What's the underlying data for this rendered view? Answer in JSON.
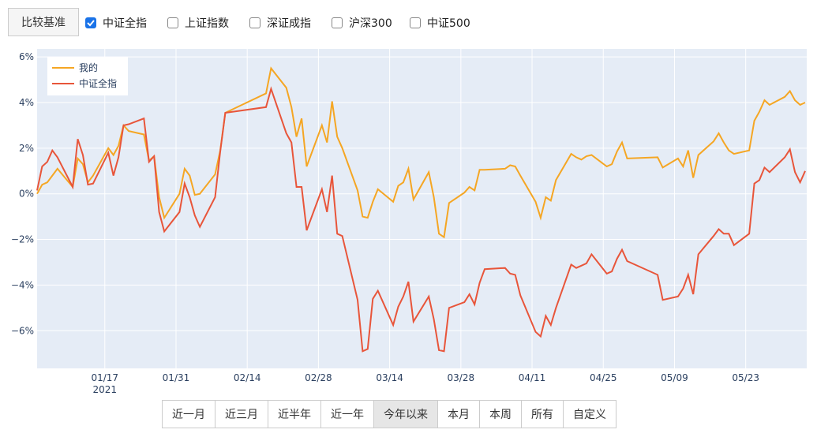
{
  "compare_button": "比较基准",
  "benchmarks": [
    {
      "label": "中证全指",
      "checked": true
    },
    {
      "label": "上证指数",
      "checked": false
    },
    {
      "label": "深证成指",
      "checked": false
    },
    {
      "label": "沪深300",
      "checked": false
    },
    {
      "label": "中证500",
      "checked": false
    }
  ],
  "chart_data": {
    "type": "line",
    "x": [
      "2021-01-04",
      "2021-01-05",
      "2021-01-06",
      "2021-01-07",
      "2021-01-08",
      "2021-01-11",
      "2021-01-12",
      "2021-01-13",
      "2021-01-14",
      "2021-01-15",
      "2021-01-18",
      "2021-01-19",
      "2021-01-20",
      "2021-01-21",
      "2021-01-22",
      "2021-01-25",
      "2021-01-26",
      "2021-01-27",
      "2021-01-28",
      "2021-01-29",
      "2021-02-01",
      "2021-02-02",
      "2021-02-03",
      "2021-02-04",
      "2021-02-05",
      "2021-02-08",
      "2021-02-09",
      "2021-02-10",
      "2021-02-18",
      "2021-02-19",
      "2021-02-22",
      "2021-02-23",
      "2021-02-24",
      "2021-02-25",
      "2021-02-26",
      "2021-03-01",
      "2021-03-02",
      "2021-03-03",
      "2021-03-04",
      "2021-03-05",
      "2021-03-08",
      "2021-03-09",
      "2021-03-10",
      "2021-03-11",
      "2021-03-12",
      "2021-03-15",
      "2021-03-16",
      "2021-03-17",
      "2021-03-18",
      "2021-03-19",
      "2021-03-22",
      "2021-03-23",
      "2021-03-24",
      "2021-03-25",
      "2021-03-26",
      "2021-03-29",
      "2021-03-30",
      "2021-03-31",
      "2021-04-01",
      "2021-04-02",
      "2021-04-06",
      "2021-04-07",
      "2021-04-08",
      "2021-04-09",
      "2021-04-12",
      "2021-04-13",
      "2021-04-14",
      "2021-04-15",
      "2021-04-16",
      "2021-04-19",
      "2021-04-20",
      "2021-04-21",
      "2021-04-22",
      "2021-04-23",
      "2021-04-26",
      "2021-04-27",
      "2021-04-28",
      "2021-04-29",
      "2021-04-30",
      "2021-05-06",
      "2021-05-07",
      "2021-05-10",
      "2021-05-11",
      "2021-05-12",
      "2021-05-13",
      "2021-05-14",
      "2021-05-17",
      "2021-05-18",
      "2021-05-19",
      "2021-05-20",
      "2021-05-21",
      "2021-05-24",
      "2021-05-25",
      "2021-05-26",
      "2021-05-27",
      "2021-05-28",
      "2021-05-31",
      "2021-06-01",
      "2021-06-02",
      "2021-06-03",
      "2021-06-04"
    ],
    "series": [
      {
        "name": "我的",
        "color": "#f5a623",
        "values": [
          0,
          0.4,
          0.5,
          0.8,
          1.1,
          0.3,
          1.55,
          1.3,
          0.5,
          0.8,
          2.0,
          1.7,
          2.1,
          3.0,
          2.75,
          2.6,
          1.45,
          1.65,
          -0.15,
          -1.05,
          0,
          1.1,
          0.8,
          -0.05,
          0,
          0.85,
          1.9,
          3.55,
          4.4,
          5.5,
          4.65,
          3.8,
          2.5,
          3.3,
          1.2,
          3.0,
          2.25,
          4.05,
          2.5,
          2.0,
          0.15,
          -1.0,
          -1.05,
          -0.35,
          0.2,
          -0.35,
          0.35,
          0.5,
          1.1,
          -0.25,
          0.95,
          -0.15,
          -1.75,
          -1.9,
          -0.4,
          0.05,
          0.3,
          0.15,
          1.05,
          1.05,
          1.1,
          1.25,
          1.2,
          0.8,
          -0.35,
          -1.05,
          -0.15,
          -0.3,
          0.6,
          1.75,
          1.6,
          1.5,
          1.65,
          1.7,
          1.2,
          1.3,
          1.85,
          2.25,
          1.55,
          1.6,
          1.15,
          1.55,
          1.2,
          1.9,
          0.7,
          1.7,
          2.3,
          2.65,
          2.25,
          1.9,
          1.75,
          1.9,
          3.2,
          3.6,
          4.1,
          3.9,
          4.25,
          4.5,
          4.1,
          3.9,
          4.0
        ]
      },
      {
        "name": "中证全指",
        "color": "#e8553a",
        "values": [
          0.15,
          1.2,
          1.4,
          1.9,
          1.6,
          0.3,
          2.4,
          1.7,
          0.4,
          0.45,
          1.8,
          0.8,
          1.6,
          3.0,
          3.05,
          3.3,
          1.4,
          1.65,
          -0.8,
          -1.65,
          -0.8,
          0.45,
          -0.15,
          -0.95,
          -1.45,
          -0.15,
          1.85,
          3.55,
          3.8,
          4.6,
          2.65,
          2.25,
          0.3,
          0.3,
          -1.6,
          0.2,
          -0.8,
          0.8,
          -1.75,
          -1.85,
          -4.65,
          -6.9,
          -6.8,
          -4.6,
          -4.25,
          -5.75,
          -4.95,
          -4.5,
          -3.85,
          -5.6,
          -4.5,
          -5.5,
          -6.85,
          -6.9,
          -5.0,
          -4.75,
          -4.4,
          -4.85,
          -3.9,
          -3.3,
          -3.25,
          -3.5,
          -3.55,
          -4.45,
          -6.05,
          -6.25,
          -5.35,
          -5.75,
          -5.0,
          -3.1,
          -3.25,
          -3.15,
          -3.05,
          -2.65,
          -3.5,
          -3.4,
          -2.85,
          -2.45,
          -2.95,
          -3.55,
          -4.65,
          -4.5,
          -4.15,
          -3.55,
          -4.4,
          -2.65,
          -1.85,
          -1.55,
          -1.75,
          -1.75,
          -2.25,
          -1.75,
          0.45,
          0.6,
          1.15,
          0.95,
          1.6,
          1.95,
          0.95,
          0.5,
          1.0
        ]
      }
    ],
    "xlim": [
      "2021-01-04",
      "2021-06-04"
    ],
    "xticks": [
      {
        "value": "2021-01-17",
        "label": "01/17"
      },
      {
        "value": "2021-01-31",
        "label": "01/31"
      },
      {
        "value": "2021-02-14",
        "label": "02/14"
      },
      {
        "value": "2021-02-28",
        "label": "02/28"
      },
      {
        "value": "2021-03-14",
        "label": "03/14"
      },
      {
        "value": "2021-03-28",
        "label": "03/28"
      },
      {
        "value": "2021-04-11",
        "label": "04/11"
      },
      {
        "value": "2021-04-25",
        "label": "04/25"
      },
      {
        "value": "2021-05-09",
        "label": "05/09"
      },
      {
        "value": "2021-05-23",
        "label": "05/23"
      }
    ],
    "x_year_label": "2021",
    "ylim": [
      -7.65,
      6.35
    ],
    "yticks": [
      {
        "value": -6,
        "label": "−6%"
      },
      {
        "value": -4,
        "label": "−4%"
      },
      {
        "value": -2,
        "label": "−2%"
      },
      {
        "value": 0,
        "label": "0%"
      },
      {
        "value": 2,
        "label": "2%"
      },
      {
        "value": 4,
        "label": "4%"
      },
      {
        "value": 6,
        "label": "6%"
      }
    ],
    "grid": true,
    "legend": "upper left"
  },
  "range_buttons": [
    {
      "label": "近一月",
      "active": false
    },
    {
      "label": "近三月",
      "active": false
    },
    {
      "label": "近半年",
      "active": false
    },
    {
      "label": "近一年",
      "active": false
    },
    {
      "label": "今年以来",
      "active": true
    },
    {
      "label": "本月",
      "active": false
    },
    {
      "label": "本周",
      "active": false
    },
    {
      "label": "所有",
      "active": false
    },
    {
      "label": "自定义",
      "active": false
    }
  ]
}
